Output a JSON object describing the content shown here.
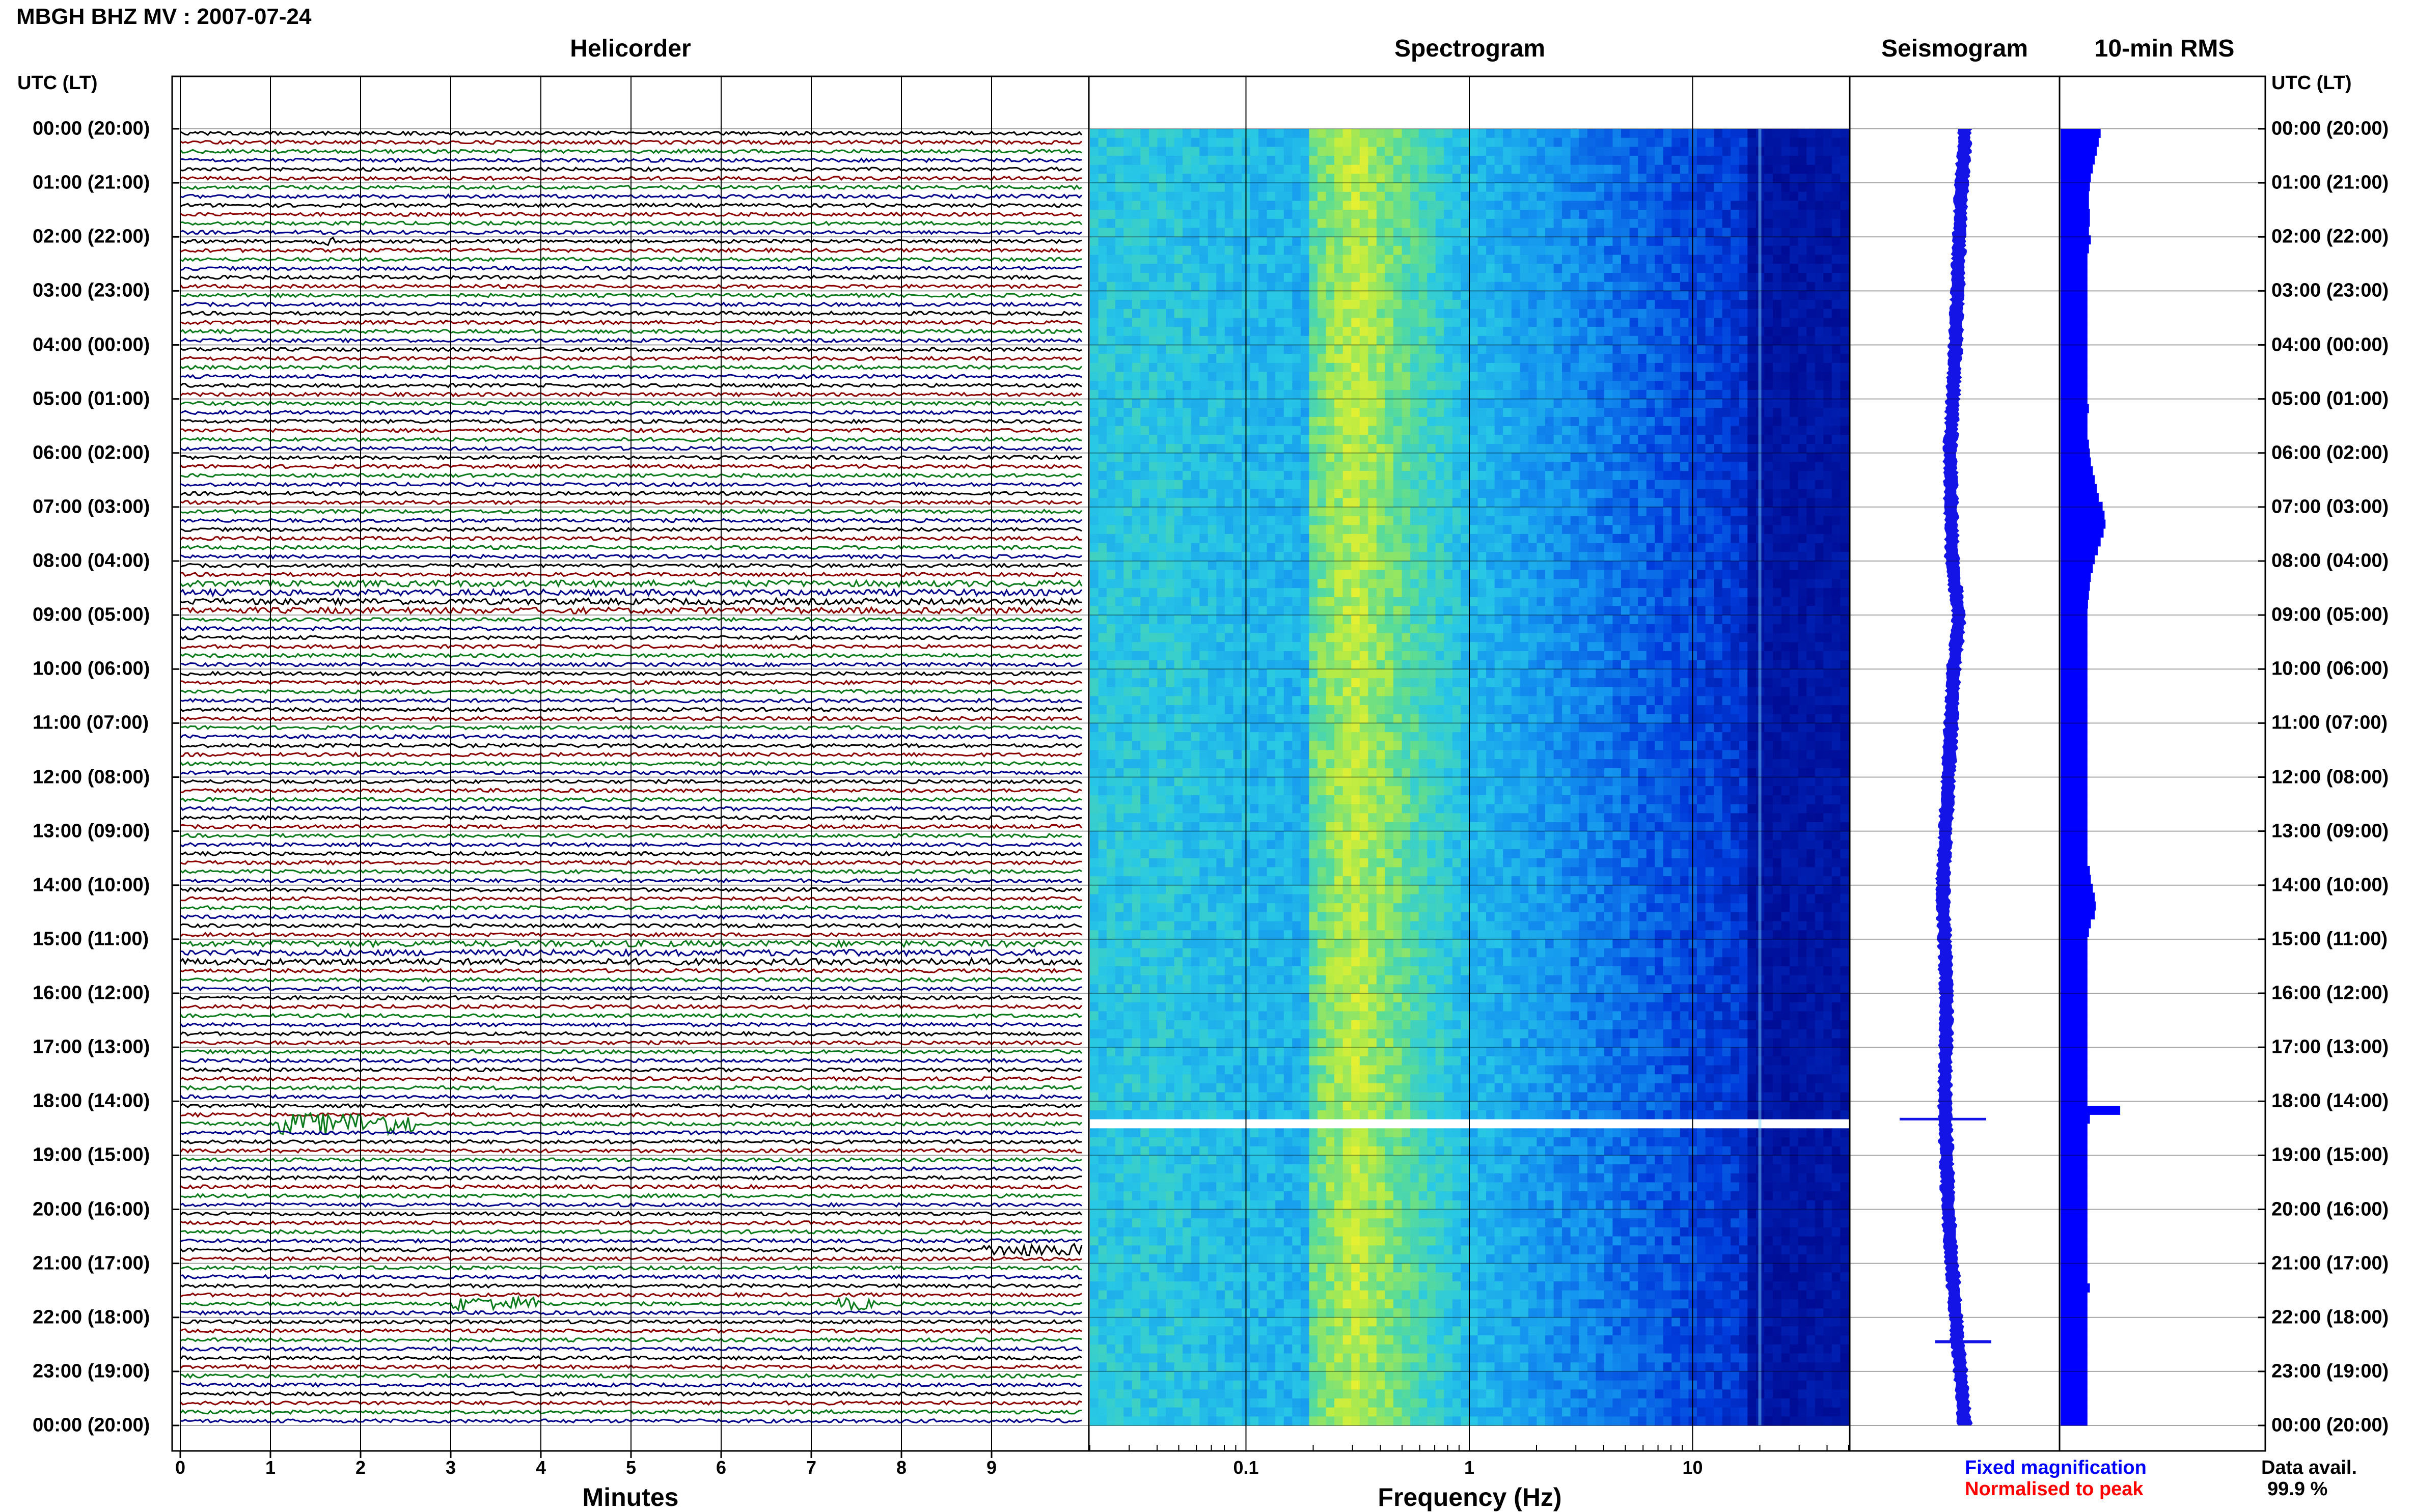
{
  "header": {
    "title": "MBGH BHZ MV : 2007-07-24"
  },
  "panels": {
    "helicorder": "Helicorder",
    "spectrogram": "Spectrogram",
    "seismogram": "Seismogram",
    "rms": "10-min RMS"
  },
  "axis": {
    "left_caption": "UTC (LT)",
    "right_caption": "UTC (LT)",
    "helicorder_xlabel": "Minutes",
    "spectrogram_xlabel": "Frequency (Hz)"
  },
  "time_labels": [
    "00:00 (20:00)",
    "01:00 (21:00)",
    "02:00 (22:00)",
    "03:00 (23:00)",
    "04:00 (00:00)",
    "05:00 (01:00)",
    "06:00 (02:00)",
    "07:00 (03:00)",
    "08:00 (04:00)",
    "09:00 (05:00)",
    "10:00 (06:00)",
    "11:00 (07:00)",
    "12:00 (08:00)",
    "13:00 (09:00)",
    "14:00 (10:00)",
    "15:00 (11:00)",
    "16:00 (12:00)",
    "17:00 (13:00)",
    "18:00 (14:00)",
    "19:00 (15:00)",
    "20:00 (16:00)",
    "21:00 (17:00)",
    "22:00 (18:00)",
    "23:00 (19:00)",
    "00:00 (20:00)"
  ],
  "legend": {
    "fixed": "Fixed magnification",
    "normalised": "Normalised to peak",
    "data_avail_label": "Data avail.",
    "data_avail_value": "99.9 %"
  },
  "colors": {
    "trace_cycle": [
      "#000000",
      "#8b0000",
      "#0a7a1a",
      "#00008b"
    ],
    "fixed": "#0000ff",
    "normalised": "#ff0000",
    "rms_fill": "#0000ff"
  },
  "chart_data": [
    {
      "type": "line",
      "title": "Helicorder",
      "xlabel": "Minutes",
      "ylabel": "UTC (LT)",
      "x_ticks": [
        0,
        1,
        2,
        3,
        4,
        5,
        6,
        7,
        8,
        9
      ],
      "x_range": [
        0,
        10
      ],
      "trace_count": 144,
      "minutes_per_trace": 10,
      "events": [
        {
          "utc": "02:00",
          "minute": 1.6,
          "amplitude": "small"
        },
        {
          "utc": "06:00",
          "minute": 2.2,
          "amplitude": "small"
        },
        {
          "utc": "18:20",
          "minute": 1.8,
          "amplitude": "large"
        },
        {
          "utc": "20:50",
          "minute": 8.8,
          "amplitude": "medium"
        },
        {
          "utc": "22:10",
          "minute": 3.4,
          "amplitude": "medium"
        },
        {
          "utc": "22:10",
          "minute": 7.5,
          "amplitude": "small"
        }
      ],
      "grid": true
    },
    {
      "type": "heatmap",
      "title": "Spectrogram",
      "xlabel": "Frequency (Hz)",
      "x_scale": "log",
      "x_range": [
        0.02,
        50
      ],
      "x_tick_labels": [
        "0.1",
        "1",
        "10"
      ],
      "colormap": "yellow-green-cyan-blue",
      "notes": "energy peaks near 0.2-0.3 Hz; white gap at ~18:20 UTC"
    },
    {
      "type": "line",
      "title": "Seismogram",
      "description_points": [
        {
          "utc": 0,
          "offset": 0.55
        },
        {
          "utc": 2,
          "offset": 0.52
        },
        {
          "utc": 4,
          "offset": 0.5
        },
        {
          "utc": 6,
          "offset": 0.47
        },
        {
          "utc": 8,
          "offset": 0.48
        },
        {
          "utc": 9,
          "offset": 0.52
        },
        {
          "utc": 10,
          "offset": 0.49
        },
        {
          "utc": 12,
          "offset": 0.46
        },
        {
          "utc": 14,
          "offset": 0.43
        },
        {
          "utc": 16,
          "offset": 0.45
        },
        {
          "utc": 18,
          "offset": 0.44
        },
        {
          "utc": 20,
          "offset": 0.46
        },
        {
          "utc": 22,
          "offset": 0.5
        },
        {
          "utc": 24,
          "offset": 0.55
        }
      ]
    },
    {
      "type": "bar",
      "title": "10-min RMS",
      "orientation": "horizontal",
      "values_relative": [
        0.82,
        0.78,
        0.74,
        0.7,
        0.66,
        0.62,
        0.6,
        0.58,
        0.58,
        0.6,
        0.6,
        0.58,
        0.62,
        0.58,
        0.55,
        0.55,
        0.55,
        0.55,
        0.55,
        0.55,
        0.55,
        0.55,
        0.55,
        0.55,
        0.55,
        0.55,
        0.55,
        0.55,
        0.55,
        0.55,
        0.55,
        0.58,
        0.55,
        0.55,
        0.55,
        0.58,
        0.6,
        0.62,
        0.66,
        0.7,
        0.74,
        0.78,
        0.86,
        0.9,
        0.92,
        0.88,
        0.82,
        0.76,
        0.7,
        0.66,
        0.62,
        0.6,
        0.58,
        0.56,
        0.55,
        0.55,
        0.55,
        0.55,
        0.55,
        0.55,
        0.55,
        0.55,
        0.55,
        0.55,
        0.55,
        0.55,
        0.55,
        0.55,
        0.55,
        0.55,
        0.55,
        0.55,
        0.55,
        0.55,
        0.55,
        0.55,
        0.55,
        0.55,
        0.55,
        0.55,
        0.55,
        0.55,
        0.55,
        0.6,
        0.62,
        0.66,
        0.7,
        0.72,
        0.7,
        0.62,
        0.58,
        0.55,
        0.55,
        0.55,
        0.55,
        0.55,
        0.55,
        0.55,
        0.55,
        0.55,
        0.55,
        0.55,
        0.55,
        0.55,
        0.55,
        0.55,
        0.55,
        0.55,
        0.55,
        0.55,
        1.22,
        0.6,
        0.55,
        0.55,
        0.55,
        0.55,
        0.55,
        0.55,
        0.55,
        0.55,
        0.55,
        0.55,
        0.55,
        0.55,
        0.55,
        0.55,
        0.55,
        0.55,
        0.55,
        0.55,
        0.6,
        0.55,
        0.55,
        0.55,
        0.55,
        0.55,
        0.55,
        0.55,
        0.55,
        0.55,
        0.55,
        0.55,
        0.55,
        0.55,
        0.55,
        0.55
      ]
    }
  ]
}
